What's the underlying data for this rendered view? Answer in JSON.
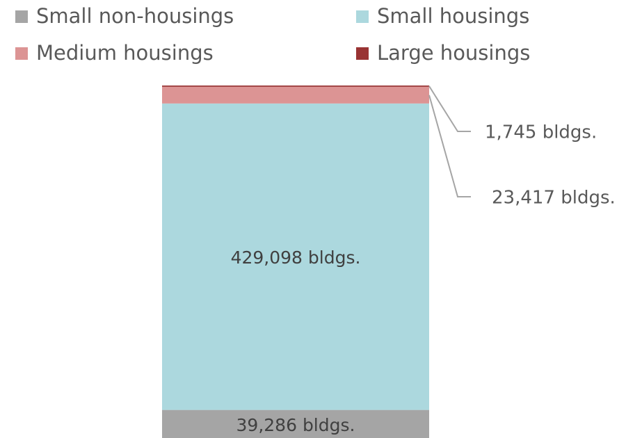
{
  "chart_data": {
    "type": "stacked_bar",
    "categories": [
      null
    ],
    "series": [
      {
        "name": "Small non-housings",
        "color": "#a5a5a5",
        "values": [
          39286
        ],
        "value_labels": [
          "39,286 bldgs."
        ]
      },
      {
        "name": "Small housings",
        "color": "#acd8de",
        "values": [
          429098
        ],
        "value_labels": [
          "429,098 bldgs."
        ]
      },
      {
        "name": "Medium housings",
        "color": "#dc9494",
        "values": [
          23417
        ],
        "value_labels": [
          "23,417 bldgs."
        ]
      },
      {
        "name": "Large housings",
        "color": "#993333",
        "values": [
          1745
        ],
        "value_labels": [
          "1,745 bldgs."
        ]
      }
    ]
  }
}
